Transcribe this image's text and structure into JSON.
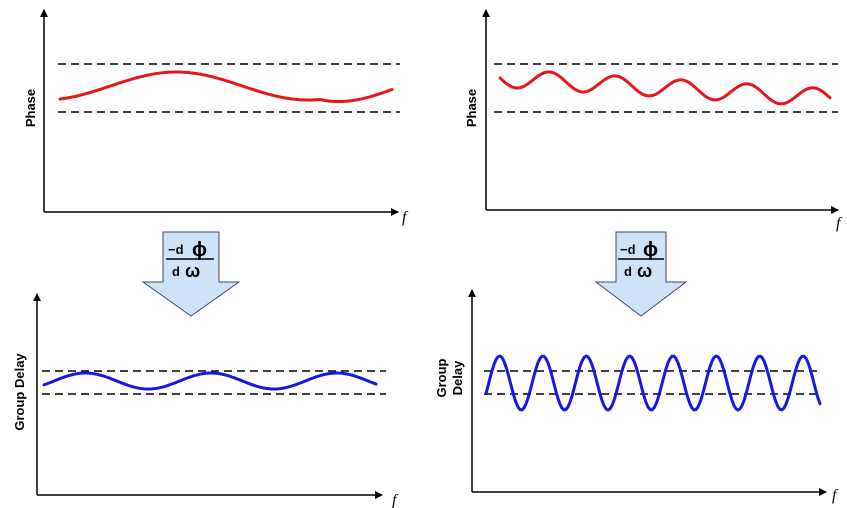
{
  "colors": {
    "phase_curve": "#e8161c",
    "delay_curve": "#1818e6",
    "arrow_fill": "#cfe3f8",
    "arrow_stroke": "#3a4a6a"
  },
  "panels": [
    {
      "id": "phase-left",
      "y_label": "Phase",
      "x_label": "f",
      "curve_variant": "smooth"
    },
    {
      "id": "phase-right",
      "y_label": "Phase",
      "x_label": "f",
      "curve_variant": "ripple"
    },
    {
      "id": "delay-left",
      "y_label": "Group Delay",
      "x_label": "f",
      "curve_variant": "smooth"
    },
    {
      "id": "delay-right",
      "y_label_lines": [
        "Group",
        "Delay"
      ],
      "x_label": "f",
      "curve_variant": "oscillating"
    }
  ],
  "derivative_arrow": {
    "prefix": "−d",
    "numerator_symbol": "ϕ",
    "denominator_d": "d",
    "denominator_symbol": "ω"
  }
}
